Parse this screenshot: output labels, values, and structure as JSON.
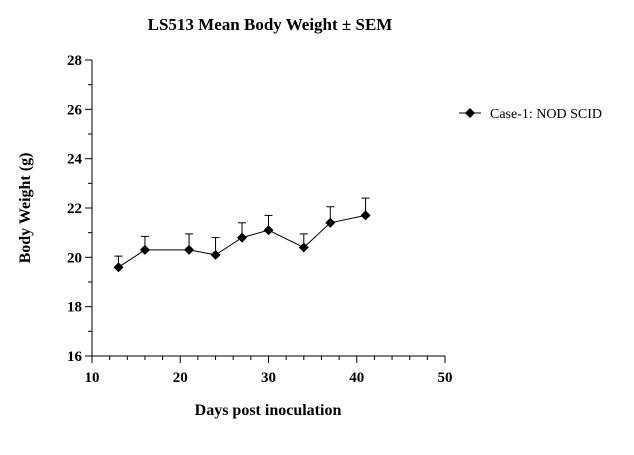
{
  "chart_data": {
    "type": "line",
    "title": "LS513 Mean Body Weight ± SEM",
    "xlabel": "Days post inoculation",
    "ylabel": "Body Weight (g)",
    "xlim": [
      10,
      50
    ],
    "ylim": [
      16,
      28
    ],
    "xticks": [
      "10",
      "20",
      "30",
      "40",
      "50"
    ],
    "yticks": [
      "16",
      "18",
      "20",
      "22",
      "24",
      "26",
      "28"
    ],
    "grid": false,
    "legend_position": "top-right",
    "series": [
      {
        "name": "Case-1: NOD SCID",
        "marker": "diamond",
        "color": "#000000",
        "x": [
          13,
          16,
          21,
          24,
          27,
          30,
          34,
          37,
          41
        ],
        "y": [
          19.6,
          20.3,
          20.3,
          20.1,
          20.8,
          21.1,
          20.4,
          21.4,
          21.7
        ],
        "sem": [
          0.45,
          0.55,
          0.65,
          0.7,
          0.6,
          0.6,
          0.55,
          0.65,
          0.7
        ]
      }
    ]
  }
}
